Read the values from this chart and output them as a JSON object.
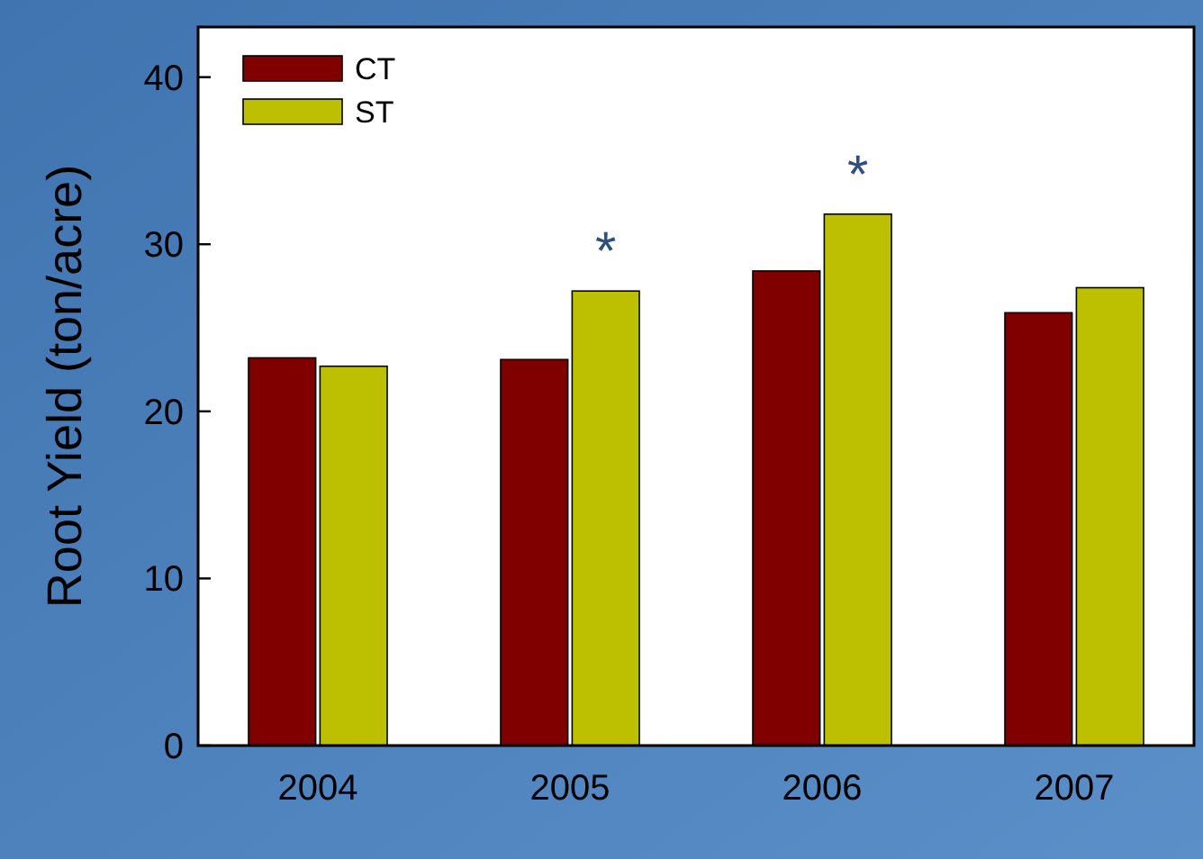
{
  "chart_data": {
    "type": "bar",
    "ylabel": "Root Yield (ton/acre)",
    "categories": [
      "2004",
      "2005",
      "2006",
      "2007"
    ],
    "series": [
      {
        "name": "CT",
        "color": "#800000",
        "values": [
          23.2,
          23.1,
          28.4,
          25.9
        ]
      },
      {
        "name": "ST",
        "color": "#bcc000",
        "values": [
          22.7,
          27.2,
          31.8,
          27.4
        ]
      }
    ],
    "ylim": [
      0,
      43
    ],
    "yticks": [
      0,
      10,
      20,
      30,
      40
    ],
    "grid": false,
    "legend": "top left",
    "annotations": [
      {
        "text": "*",
        "x": "2005",
        "y": 27.2
      },
      {
        "text": "*",
        "x": "2006",
        "y": 31.8
      }
    ]
  }
}
